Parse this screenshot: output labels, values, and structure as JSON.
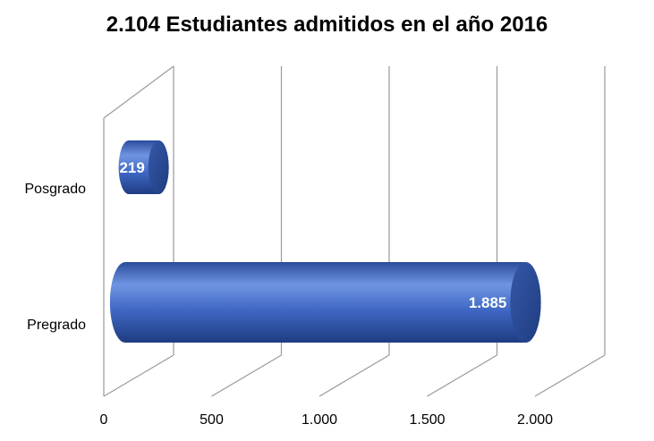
{
  "chart_data": {
    "type": "bar",
    "orientation": "horizontal",
    "style": "3d-cylinder",
    "title": "2.104 Estudiantes admitidos en el año 2016",
    "categories": [
      "Posgrado",
      "Pregrado"
    ],
    "values": [
      219,
      1885
    ],
    "data_labels": [
      "219",
      "1.885"
    ],
    "xlim": [
      0,
      2000
    ],
    "x_ticks": [
      0,
      500,
      1000,
      1500,
      2000
    ],
    "x_tick_labels": [
      "0",
      "500",
      "1.000",
      "1.500",
      "2.000"
    ],
    "grid": true,
    "legend": "none",
    "colors": {
      "bar": "#3e67c4",
      "bar_light": "#6f95e2",
      "bar_dark": "#22418a",
      "cap": "#2c4f9a",
      "grid": "#9a9a9a"
    }
  }
}
